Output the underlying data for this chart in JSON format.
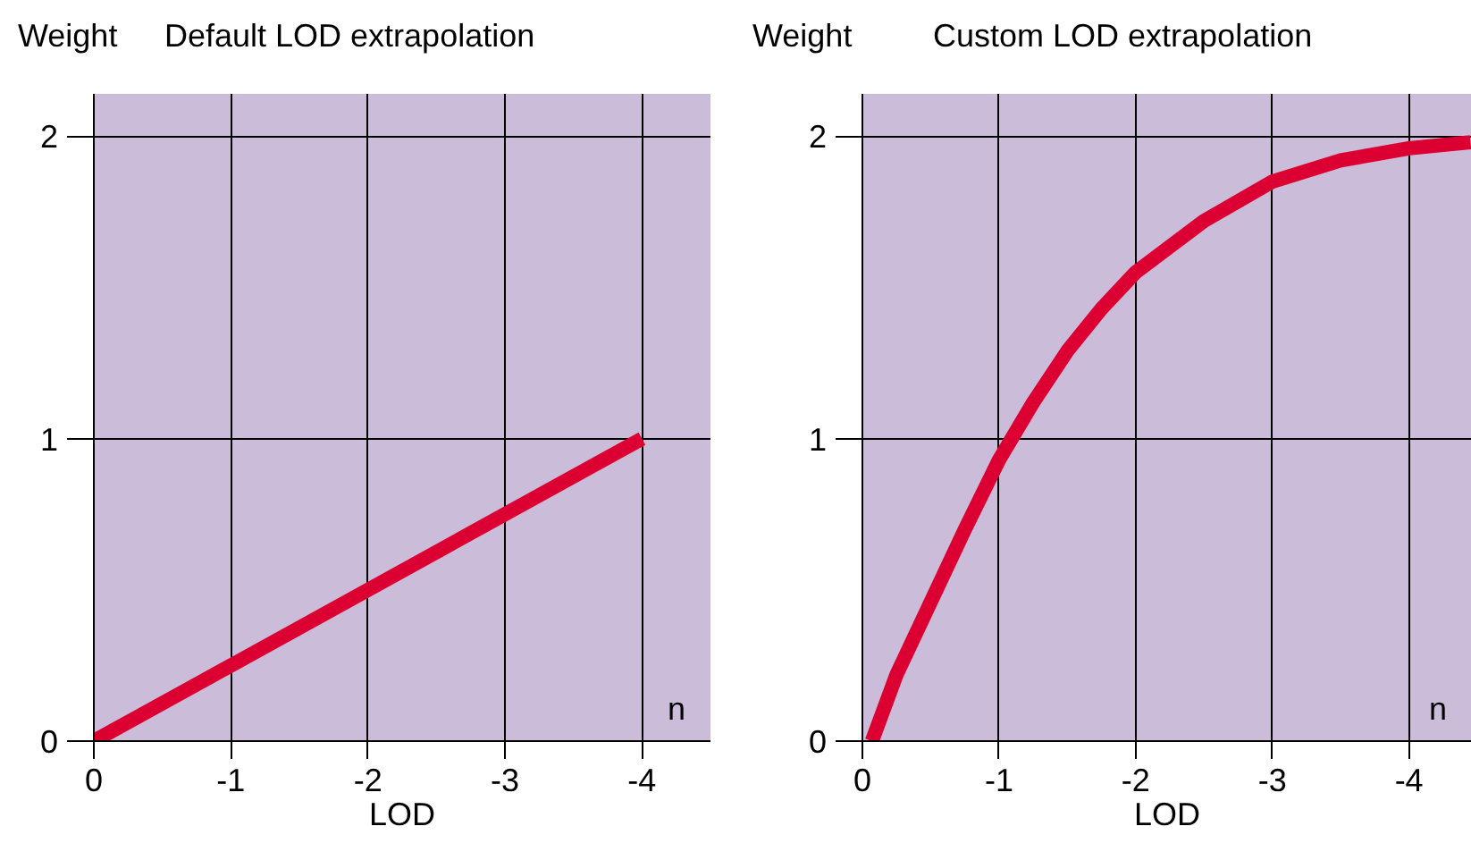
{
  "chart_data": [
    {
      "type": "line",
      "title": "Default LOD extrapolation",
      "xlabel": "LOD",
      "ylabel": "Weight",
      "series": [
        {
          "color": "#dc0032",
          "x": [
            0,
            -4
          ],
          "values": [
            0,
            1
          ]
        }
      ],
      "xlim": [
        0,
        -4.5
      ],
      "ylim": [
        0,
        2.14
      ],
      "xticks": [
        0,
        -1,
        -2,
        -3,
        -4
      ],
      "yticks": [
        0,
        1,
        2
      ],
      "grid": true,
      "annotations": [
        "n"
      ]
    },
    {
      "type": "line",
      "title": "Custom LOD extrapolation",
      "xlabel": "LOD",
      "ylabel": "Weight",
      "series": [
        {
          "color": "#dc0032",
          "x": [
            -0.07,
            -0.25,
            -0.5,
            -0.75,
            -1,
            -1.25,
            -1.5,
            -1.75,
            -2,
            -2.5,
            -3,
            -3.5,
            -4,
            -4.45
          ],
          "values": [
            0,
            0.22,
            0.46,
            0.7,
            0.93,
            1.12,
            1.29,
            1.43,
            1.55,
            1.72,
            1.85,
            1.92,
            1.96,
            1.98
          ]
        }
      ],
      "xlim": [
        0,
        -4.46
      ],
      "ylim": [
        0,
        2.14
      ],
      "xticks": [
        0,
        -1,
        -2,
        -3,
        -4
      ],
      "yticks": [
        0,
        1,
        2
      ],
      "grid": true,
      "annotations": [
        "n"
      ]
    }
  ]
}
